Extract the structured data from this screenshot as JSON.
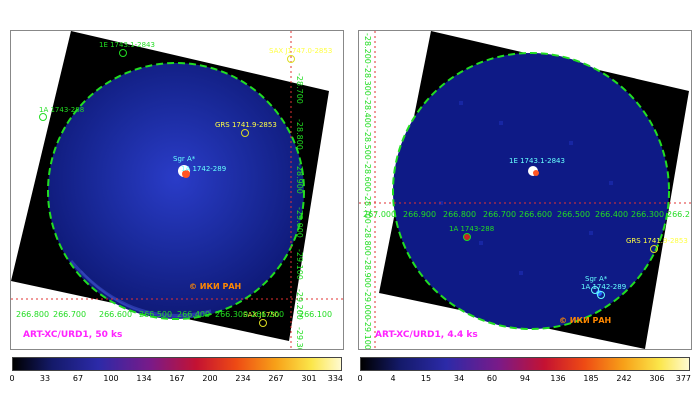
{
  "left": {
    "caption": "ART-XC/URD1, 50 ks",
    "copyright": "© ИКИ РАН",
    "sources": {
      "e1743": "1E 1743.1-2843",
      "a1743": "1A 1743-288",
      "grs": "GRS 1741.9-2853",
      "sgra": "Sgr A*",
      "a1742": "1A 1742-289",
      "topright": "SAX J1747.0-2853",
      "bottomright": "SAX J1750"
    },
    "ra_labels": [
      "266.800",
      "266.700",
      "266.600",
      "266.500",
      "266.400",
      "266.300",
      "266.200",
      "266.100"
    ],
    "dec_labels": [
      "-28.700",
      "-28.800",
      "-28.900",
      "-29.000",
      "-29.100",
      "-29.200",
      "-29.300"
    ],
    "colorbar_ticks": [
      "0",
      "33",
      "67",
      "100",
      "134",
      "167",
      "200",
      "234",
      "267",
      "301",
      "334"
    ]
  },
  "right": {
    "caption": "ART-XC/URD1, 4.4 ks",
    "copyright": "© ИКИ РАН",
    "sources": {
      "e1743": "1E 1743.1-2843",
      "a1743": "1A 1743-288",
      "grs": "GRS 1741.9-2853",
      "sgra": "Sgr A*",
      "a1742": "1A 1742-289"
    },
    "ra_labels": [
      "267.000",
      "266.900",
      "266.800",
      "266.700",
      "266.600",
      "266.500",
      "266.400",
      "266.300",
      "266.2"
    ],
    "dec_labels": [
      "-28.200",
      "-28.300",
      "-28.400",
      "-28.500",
      "-28.600",
      "-28.700",
      "-28.800",
      "-28.900",
      "-29.000",
      "-29.100"
    ],
    "colorbar_ticks": [
      "0",
      "4",
      "15",
      "34",
      "60",
      "94",
      "136",
      "185",
      "242",
      "306",
      "377"
    ]
  },
  "colors": {
    "field": "#0b1a78",
    "circle": "#22dd22",
    "grid": "#e23232",
    "label_green": "#22dd22",
    "label_yellow": "#ffff44",
    "label_cyan": "#66ffff",
    "caption": "#ff22ff",
    "copyright": "#ff8800"
  }
}
